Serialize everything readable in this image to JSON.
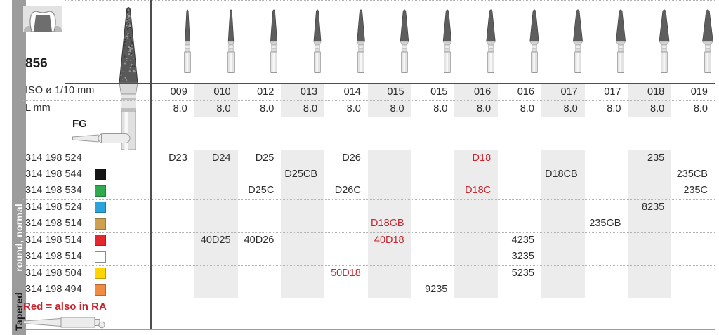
{
  "sidebar": {
    "family": "Tapered",
    "variant": "round, normal"
  },
  "product": {
    "figure": "856",
    "shank_label": "FG",
    "note_red": "Red = also in RA",
    "red_text_color": "#c5262f"
  },
  "header": {
    "iso_label": "ISO ø 1/10 mm",
    "l_label": "L mm",
    "iso_values": [
      "009",
      "010",
      "012",
      "013",
      "014",
      "015",
      "015",
      "016",
      "016",
      "017",
      "017",
      "018",
      "019"
    ],
    "l_values": [
      "8.0",
      "8.0",
      "8.0",
      "8.0",
      "8.0",
      "8.0",
      "8.0",
      "8.0",
      "8.0",
      "8.0",
      "8.0",
      "8.0",
      "8.0"
    ]
  },
  "rows": [
    {
      "order_no": "314 198 524",
      "chip": null,
      "cells": [
        {
          "col": 1,
          "code": "D23"
        },
        {
          "col": 2,
          "code": "D24"
        },
        {
          "col": 3,
          "code": "D25"
        },
        {
          "col": 5,
          "code": "D26"
        },
        {
          "col": 8,
          "code": "D18",
          "red": true
        },
        {
          "col": 12,
          "code": "235"
        }
      ]
    },
    {
      "order_no": "314 198 544",
      "chip": {
        "name": "black",
        "hex": "#151515"
      },
      "cells": [
        {
          "col": 4,
          "code": "D25CB"
        },
        {
          "col": 10,
          "code": "D18CB"
        },
        {
          "col": 13,
          "code": "235CB"
        }
      ]
    },
    {
      "order_no": "314 198 534",
      "chip": {
        "name": "green",
        "hex": "#2faa4f"
      },
      "cells": [
        {
          "col": 3,
          "code": "D25C"
        },
        {
          "col": 5,
          "code": "D26C"
        },
        {
          "col": 8,
          "code": "D18C",
          "red": true
        },
        {
          "col": 13,
          "code": "235C"
        }
      ]
    },
    {
      "order_no": "314 198 524",
      "chip": {
        "name": "blue",
        "hex": "#2aa3dc"
      },
      "cells": [
        {
          "col": 12,
          "code": "8235"
        }
      ]
    },
    {
      "order_no": "314 198 514",
      "chip": {
        "name": "gold",
        "hex": "#cfa050"
      },
      "cells": [
        {
          "col": 6,
          "code": "D18GB",
          "red": true
        },
        {
          "col": 11,
          "code": "235GB"
        }
      ]
    },
    {
      "order_no": "314 198 514",
      "chip": {
        "name": "red",
        "hex": "#e3272e"
      },
      "cells": [
        {
          "col": 2,
          "code": "40D25"
        },
        {
          "col": 3,
          "code": "40D26"
        },
        {
          "col": 6,
          "code": "40D18",
          "red": true
        },
        {
          "col": 9,
          "code": "4235"
        }
      ]
    },
    {
      "order_no": "314 198 514",
      "chip": {
        "name": "white",
        "hex": "#ffffff"
      },
      "cells": [
        {
          "col": 9,
          "code": "3235"
        }
      ]
    },
    {
      "order_no": "314 198 504",
      "chip": {
        "name": "yellow",
        "hex": "#ffd400"
      },
      "cells": [
        {
          "col": 5,
          "code": "50D18",
          "red": true
        },
        {
          "col": 9,
          "code": "5235"
        }
      ]
    },
    {
      "order_no": "314 198 494",
      "chip": {
        "name": "orange",
        "hex": "#f08b42"
      },
      "cells": [
        {
          "col": 7,
          "code": "9235"
        }
      ]
    }
  ],
  "colors": {
    "band_gray": "#ececec",
    "sidebar_gray": "#9c9c9c",
    "bur_head_dark": "#595959",
    "bur_shank_light": "#e3e3e3"
  }
}
